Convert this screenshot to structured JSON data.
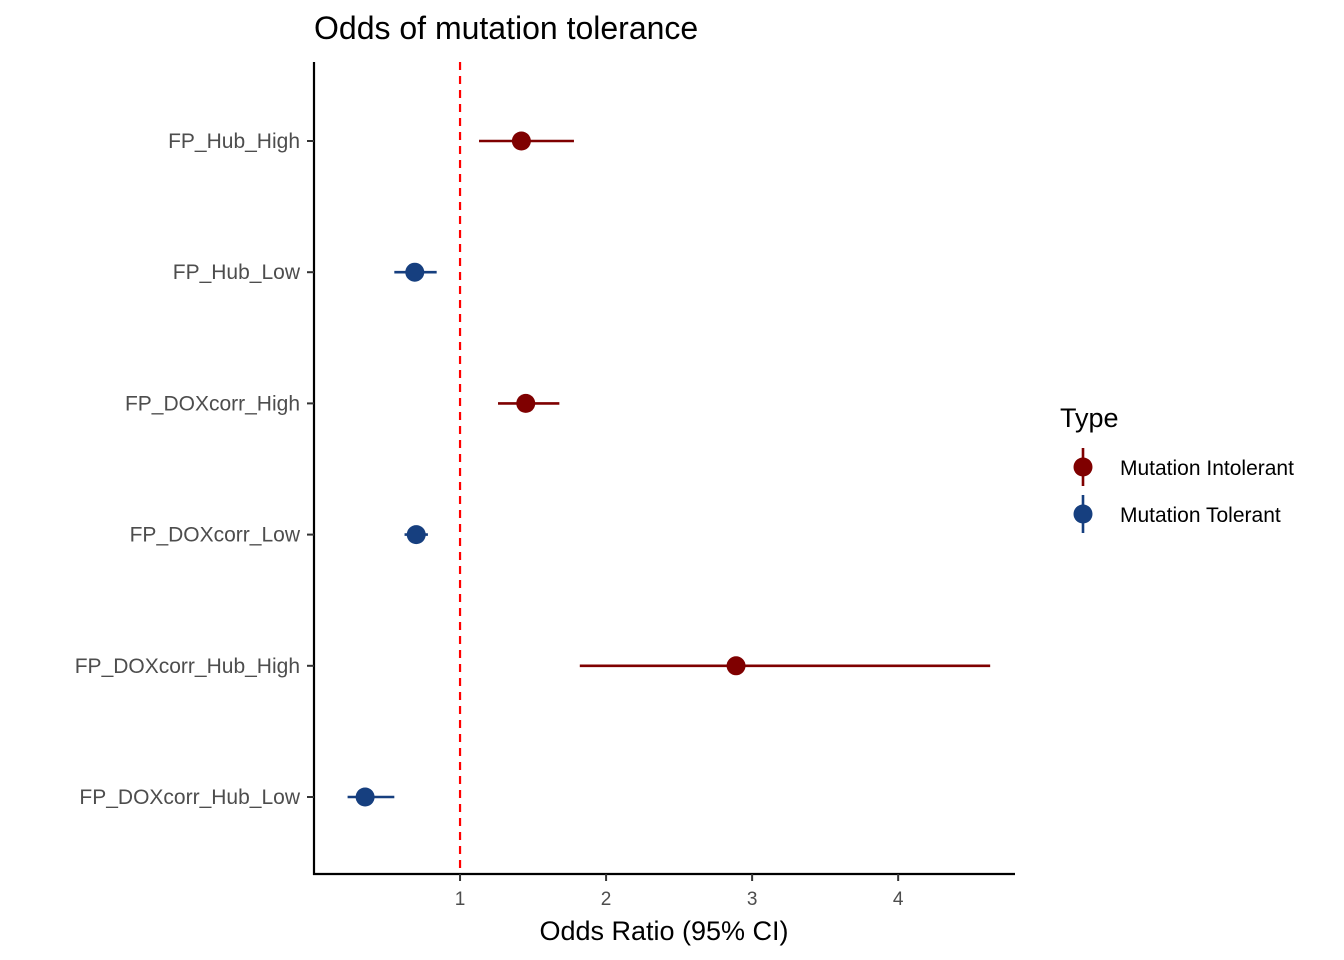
{
  "chart_data": {
    "type": "scatter",
    "subtype": "forest-plot",
    "title": "Odds of mutation tolerance",
    "xlabel": "Odds Ratio (95% CI)",
    "ylabel": "",
    "xlim": [
      0.0,
      4.8
    ],
    "xticks": [
      1,
      2,
      3,
      4
    ],
    "reference_line": {
      "x": 1,
      "style": "dashed",
      "color": "#ff0000"
    },
    "grid": false,
    "legend": {
      "title": "Type",
      "position": "right",
      "entries": [
        {
          "name": "Mutation Intolerant",
          "color": "#7f0000"
        },
        {
          "name": "Mutation Tolerant",
          "color": "#163f7f"
        }
      ]
    },
    "categories": [
      "FP_Hub_High",
      "FP_Hub_Low",
      "FP_DOXcorr_High",
      "FP_DOXcorr_Low",
      "FP_DOXcorr_Hub_High",
      "FP_DOXcorr_Hub_Low"
    ],
    "points": [
      {
        "category": "FP_Hub_High",
        "type": "Mutation Intolerant",
        "or": 1.42,
        "lower": 1.13,
        "upper": 1.78
      },
      {
        "category": "FP_Hub_Low",
        "type": "Mutation Tolerant",
        "or": 0.69,
        "lower": 0.55,
        "upper": 0.84
      },
      {
        "category": "FP_DOXcorr_High",
        "type": "Mutation Intolerant",
        "or": 1.45,
        "lower": 1.26,
        "upper": 1.68
      },
      {
        "category": "FP_DOXcorr_Low",
        "type": "Mutation Tolerant",
        "or": 0.7,
        "lower": 0.62,
        "upper": 0.78
      },
      {
        "category": "FP_DOXcorr_Hub_High",
        "type": "Mutation Intolerant",
        "or": 2.89,
        "lower": 1.82,
        "upper": 4.63
      },
      {
        "category": "FP_DOXcorr_Hub_Low",
        "type": "Mutation Tolerant",
        "or": 0.35,
        "lower": 0.23,
        "upper": 0.55
      }
    ]
  }
}
